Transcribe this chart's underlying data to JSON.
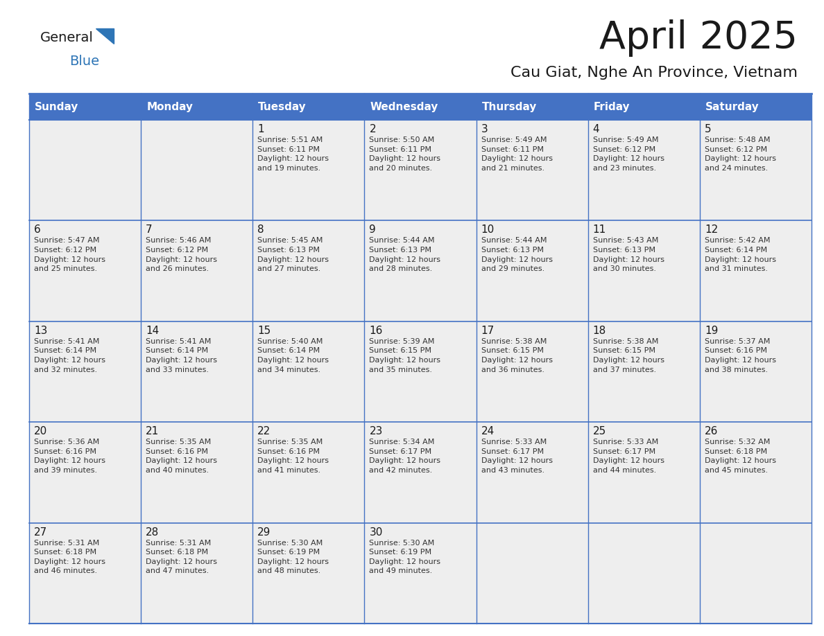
{
  "title": "April 2025",
  "subtitle": "Cau Giat, Nghe An Province, Vietnam",
  "days_of_week": [
    "Sunday",
    "Monday",
    "Tuesday",
    "Wednesday",
    "Thursday",
    "Friday",
    "Saturday"
  ],
  "header_bg": "#4472C4",
  "header_text": "#FFFFFF",
  "cell_bg": "#EEEEEE",
  "border_color": "#4472C4",
  "row_separator_color": "#4472C4",
  "title_color": "#1a1a1a",
  "subtitle_color": "#1a1a1a",
  "day_num_color": "#1a1a1a",
  "cell_text_color": "#333333",
  "logo_general_color": "#1a1a1a",
  "logo_blue_color": "#2E75B6",
  "weeks": [
    [
      {
        "day": null,
        "text": ""
      },
      {
        "day": null,
        "text": ""
      },
      {
        "day": 1,
        "text": "Sunrise: 5:51 AM\nSunset: 6:11 PM\nDaylight: 12 hours\nand 19 minutes."
      },
      {
        "day": 2,
        "text": "Sunrise: 5:50 AM\nSunset: 6:11 PM\nDaylight: 12 hours\nand 20 minutes."
      },
      {
        "day": 3,
        "text": "Sunrise: 5:49 AM\nSunset: 6:11 PM\nDaylight: 12 hours\nand 21 minutes."
      },
      {
        "day": 4,
        "text": "Sunrise: 5:49 AM\nSunset: 6:12 PM\nDaylight: 12 hours\nand 23 minutes."
      },
      {
        "day": 5,
        "text": "Sunrise: 5:48 AM\nSunset: 6:12 PM\nDaylight: 12 hours\nand 24 minutes."
      }
    ],
    [
      {
        "day": 6,
        "text": "Sunrise: 5:47 AM\nSunset: 6:12 PM\nDaylight: 12 hours\nand 25 minutes."
      },
      {
        "day": 7,
        "text": "Sunrise: 5:46 AM\nSunset: 6:12 PM\nDaylight: 12 hours\nand 26 minutes."
      },
      {
        "day": 8,
        "text": "Sunrise: 5:45 AM\nSunset: 6:13 PM\nDaylight: 12 hours\nand 27 minutes."
      },
      {
        "day": 9,
        "text": "Sunrise: 5:44 AM\nSunset: 6:13 PM\nDaylight: 12 hours\nand 28 minutes."
      },
      {
        "day": 10,
        "text": "Sunrise: 5:44 AM\nSunset: 6:13 PM\nDaylight: 12 hours\nand 29 minutes."
      },
      {
        "day": 11,
        "text": "Sunrise: 5:43 AM\nSunset: 6:13 PM\nDaylight: 12 hours\nand 30 minutes."
      },
      {
        "day": 12,
        "text": "Sunrise: 5:42 AM\nSunset: 6:14 PM\nDaylight: 12 hours\nand 31 minutes."
      }
    ],
    [
      {
        "day": 13,
        "text": "Sunrise: 5:41 AM\nSunset: 6:14 PM\nDaylight: 12 hours\nand 32 minutes."
      },
      {
        "day": 14,
        "text": "Sunrise: 5:41 AM\nSunset: 6:14 PM\nDaylight: 12 hours\nand 33 minutes."
      },
      {
        "day": 15,
        "text": "Sunrise: 5:40 AM\nSunset: 6:14 PM\nDaylight: 12 hours\nand 34 minutes."
      },
      {
        "day": 16,
        "text": "Sunrise: 5:39 AM\nSunset: 6:15 PM\nDaylight: 12 hours\nand 35 minutes."
      },
      {
        "day": 17,
        "text": "Sunrise: 5:38 AM\nSunset: 6:15 PM\nDaylight: 12 hours\nand 36 minutes."
      },
      {
        "day": 18,
        "text": "Sunrise: 5:38 AM\nSunset: 6:15 PM\nDaylight: 12 hours\nand 37 minutes."
      },
      {
        "day": 19,
        "text": "Sunrise: 5:37 AM\nSunset: 6:16 PM\nDaylight: 12 hours\nand 38 minutes."
      }
    ],
    [
      {
        "day": 20,
        "text": "Sunrise: 5:36 AM\nSunset: 6:16 PM\nDaylight: 12 hours\nand 39 minutes."
      },
      {
        "day": 21,
        "text": "Sunrise: 5:35 AM\nSunset: 6:16 PM\nDaylight: 12 hours\nand 40 minutes."
      },
      {
        "day": 22,
        "text": "Sunrise: 5:35 AM\nSunset: 6:16 PM\nDaylight: 12 hours\nand 41 minutes."
      },
      {
        "day": 23,
        "text": "Sunrise: 5:34 AM\nSunset: 6:17 PM\nDaylight: 12 hours\nand 42 minutes."
      },
      {
        "day": 24,
        "text": "Sunrise: 5:33 AM\nSunset: 6:17 PM\nDaylight: 12 hours\nand 43 minutes."
      },
      {
        "day": 25,
        "text": "Sunrise: 5:33 AM\nSunset: 6:17 PM\nDaylight: 12 hours\nand 44 minutes."
      },
      {
        "day": 26,
        "text": "Sunrise: 5:32 AM\nSunset: 6:18 PM\nDaylight: 12 hours\nand 45 minutes."
      }
    ],
    [
      {
        "day": 27,
        "text": "Sunrise: 5:31 AM\nSunset: 6:18 PM\nDaylight: 12 hours\nand 46 minutes."
      },
      {
        "day": 28,
        "text": "Sunrise: 5:31 AM\nSunset: 6:18 PM\nDaylight: 12 hours\nand 47 minutes."
      },
      {
        "day": 29,
        "text": "Sunrise: 5:30 AM\nSunset: 6:19 PM\nDaylight: 12 hours\nand 48 minutes."
      },
      {
        "day": 30,
        "text": "Sunrise: 5:30 AM\nSunset: 6:19 PM\nDaylight: 12 hours\nand 49 minutes."
      },
      {
        "day": null,
        "text": ""
      },
      {
        "day": null,
        "text": ""
      },
      {
        "day": null,
        "text": ""
      }
    ]
  ]
}
